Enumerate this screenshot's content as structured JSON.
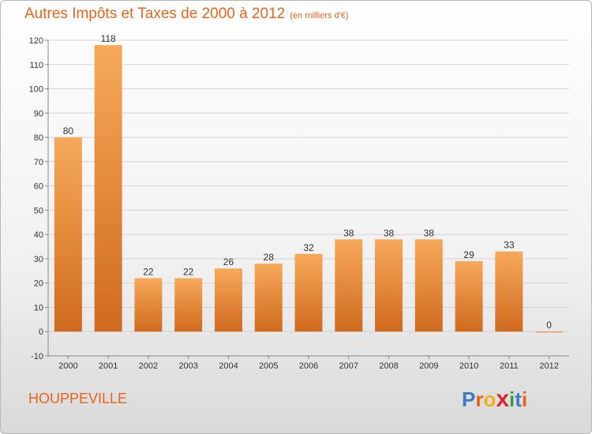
{
  "header": {
    "title": "Autres Impôts et Taxes de 2000 à 2012",
    "unit": "(en milliers d'€)"
  },
  "footer": {
    "place": "HOUPPEVILLE",
    "logo_letters": [
      "P",
      "r",
      "o",
      "x",
      "i",
      "t",
      "i"
    ],
    "logo_colors": [
      "#3b7bc8",
      "#e8641b",
      "#f2b01e",
      "#d9262f",
      "#3b9a3b",
      "#3b7bc8",
      "#e8641b"
    ]
  },
  "colors": {
    "bar_light": "#f7a95a",
    "bar_dark": "#d06a1e",
    "title": "#e8641b"
  },
  "chart_data": {
    "type": "bar",
    "categories": [
      "2000",
      "2001",
      "2002",
      "2003",
      "2004",
      "2005",
      "2006",
      "2007",
      "2008",
      "2009",
      "2010",
      "2011",
      "2012"
    ],
    "values": [
      80,
      118,
      22,
      22,
      26,
      28,
      32,
      38,
      38,
      38,
      29,
      33,
      0
    ],
    "ylim": [
      -10,
      120
    ],
    "yticks": [
      -10,
      0,
      10,
      20,
      30,
      40,
      50,
      60,
      70,
      80,
      90,
      100,
      110,
      120
    ],
    "grid": true
  }
}
